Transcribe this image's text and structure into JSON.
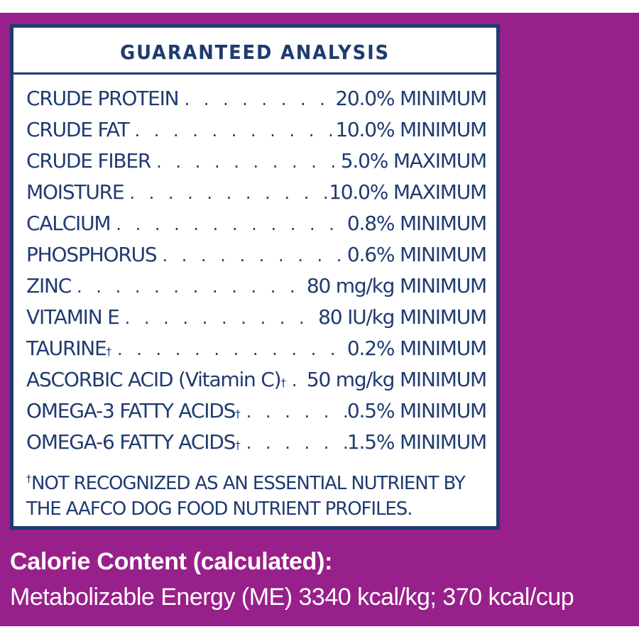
{
  "colors": {
    "background_purple": "#98208a",
    "ink_navy": "#1f3b70",
    "label_white": "#ffffff"
  },
  "analysis": {
    "title": "GUARANTEED ANALYSIS",
    "dagger": "†",
    "dot_leader": ". . . . . . . . . . . . . . . . . . . . . . . . . .",
    "rows": [
      {
        "name": "CRUDE PROTEIN",
        "dagger": "",
        "value": "20.0% MINIMUM"
      },
      {
        "name": "CRUDE FAT",
        "dagger": "",
        "value": "10.0% MINIMUM"
      },
      {
        "name": "CRUDE FIBER",
        "dagger": "",
        "value": "5.0% MAXIMUM"
      },
      {
        "name": "MOISTURE",
        "dagger": "",
        "value": "10.0% MAXIMUM"
      },
      {
        "name": "CALCIUM",
        "dagger": "",
        "value": "0.8% MINIMUM"
      },
      {
        "name": "PHOSPHORUS",
        "dagger": "",
        "value": "0.6% MINIMUM"
      },
      {
        "name": "ZINC",
        "dagger": "",
        "value": "80 mg/kg MINIMUM"
      },
      {
        "name": "VITAMIN E",
        "dagger": "",
        "value": "80 IU/kg MINIMUM"
      },
      {
        "name": "TAURINE",
        "dagger": "†",
        "value": "0.2% MINIMUM"
      },
      {
        "name": "ASCORBIC ACID (Vitamin C)",
        "dagger": "†",
        "value": "50 mg/kg MINIMUM"
      },
      {
        "name": "OMEGA-3 FATTY ACIDS",
        "dagger": "†",
        "value": "0.5% MINIMUM"
      },
      {
        "name": "OMEGA-6 FATTY ACIDS",
        "dagger": "†",
        "value": "1.5% MINIMUM"
      }
    ],
    "footnote_mark": "†",
    "footnote": "NOT RECOGNIZED AS AN ESSENTIAL NUTRIENT BY THE  AAFCO DOG FOOD NUTRIENT PROFILES."
  },
  "calorie": {
    "heading": "Calorie Content (calculated):",
    "detail": "Metabolizable Energy (ME) 3340 kcal/kg; 370 kcal/cup"
  }
}
